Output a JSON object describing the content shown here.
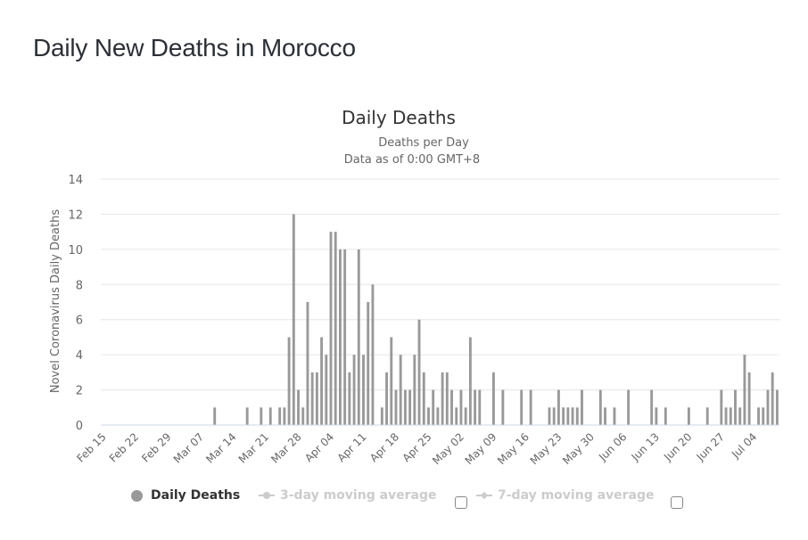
{
  "page_title": "Daily New Deaths in Morocco",
  "chart_data": {
    "type": "bar",
    "title": "Daily Deaths",
    "subtitle_line1": "Deaths per Day",
    "subtitle_line2": "Data as of 0:00 GMT+8",
    "ylabel": "Novel Coronavirus Daily Deaths",
    "ylim": [
      0,
      14
    ],
    "yticks": [
      "0",
      "2",
      "4",
      "6",
      "8",
      "10",
      "12",
      "14"
    ],
    "xticks": [
      "Feb 15",
      "Feb 22",
      "Feb 29",
      "Mar 07",
      "Mar 14",
      "Mar 21",
      "Mar 28",
      "Apr 04",
      "Apr 11",
      "Apr 18",
      "Apr 25",
      "May 02",
      "May 09",
      "May 16",
      "May 23",
      "May 30",
      "Jun 06",
      "Jun 13",
      "Jun 20",
      "Jun 27",
      "Jul 04"
    ],
    "grid": true,
    "bar_color": "#999999",
    "series": [
      {
        "name": "Daily Deaths",
        "start_date": "Feb 15",
        "values": [
          0,
          0,
          0,
          0,
          0,
          0,
          0,
          0,
          0,
          0,
          0,
          0,
          0,
          0,
          0,
          0,
          0,
          0,
          0,
          0,
          0,
          0,
          0,
          0,
          1,
          0,
          0,
          0,
          0,
          0,
          0,
          1,
          0,
          0,
          1,
          0,
          1,
          0,
          1,
          1,
          5,
          12,
          2,
          1,
          7,
          3,
          3,
          5,
          4,
          11,
          11,
          10,
          10,
          3,
          4,
          10,
          4,
          7,
          8,
          0,
          1,
          3,
          5,
          2,
          4,
          2,
          2,
          4,
          6,
          3,
          1,
          2,
          1,
          3,
          3,
          2,
          1,
          2,
          1,
          5,
          2,
          2,
          0,
          0,
          3,
          0,
          2,
          0,
          0,
          0,
          2,
          0,
          2,
          0,
          0,
          0,
          1,
          1,
          2,
          1,
          1,
          1,
          1,
          2,
          0,
          0,
          0,
          2,
          1,
          0,
          1,
          0,
          0,
          2,
          0,
          0,
          0,
          0,
          2,
          1,
          0,
          1,
          0,
          0,
          0,
          0,
          1,
          0,
          0,
          0,
          1,
          0,
          0,
          2,
          1,
          1,
          2,
          1,
          4,
          3,
          0,
          1,
          1,
          2,
          3,
          2
        ]
      }
    ]
  },
  "legend": {
    "daily_deaths": "Daily Deaths",
    "ma3": "3-day moving average",
    "ma7": "7-day moving average"
  }
}
